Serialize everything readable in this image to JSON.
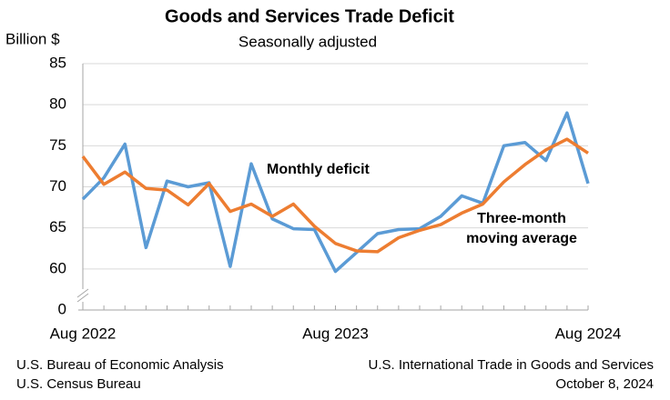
{
  "chart_data": {
    "type": "line",
    "title": "Goods and Services Trade Deficit",
    "subtitle": "Seasonally adjusted",
    "y_label": "Billion $",
    "categories": [
      "Aug 2022",
      null,
      null,
      null,
      null,
      null,
      null,
      null,
      null,
      null,
      null,
      null,
      "Aug 2023",
      null,
      null,
      null,
      null,
      null,
      null,
      null,
      null,
      null,
      null,
      null,
      "Aug 2024"
    ],
    "series": [
      {
        "name": "Monthly deficit",
        "color": "#5b9bd5",
        "values": [
          68.5,
          71.1,
          75.2,
          62.6,
          70.7,
          70.0,
          70.5,
          60.3,
          72.8,
          66.1,
          64.9,
          64.8,
          59.7,
          62.0,
          64.3,
          64.8,
          64.9,
          66.4,
          68.9,
          68.0,
          75.0,
          75.4,
          73.2,
          79.0,
          70.4
        ]
      },
      {
        "color": "#ed7d31",
        "values": [
          73.7,
          70.3,
          71.8,
          69.8,
          69.6,
          67.8,
          70.4,
          67.0,
          67.9,
          66.4,
          67.9,
          65.2,
          63.1,
          62.2,
          62.1,
          63.8,
          64.7,
          65.4,
          66.8,
          67.9,
          70.6,
          72.7,
          74.5,
          75.8,
          74.1
        ]
      }
    ],
    "annotations": [
      "Three-month",
      "moving average"
    ],
    "ylim": [
      55,
      85
    ],
    "yticks": [
      0,
      60,
      65,
      70,
      75,
      80,
      85
    ],
    "axis_break": true,
    "grid": true
  },
  "footer": {
    "left": [
      "U.S. Bureau of Economic Analysis",
      "U.S. Census Bureau"
    ],
    "right": [
      "U.S. International Trade in Goods and Services",
      "October 8, 2024"
    ]
  }
}
